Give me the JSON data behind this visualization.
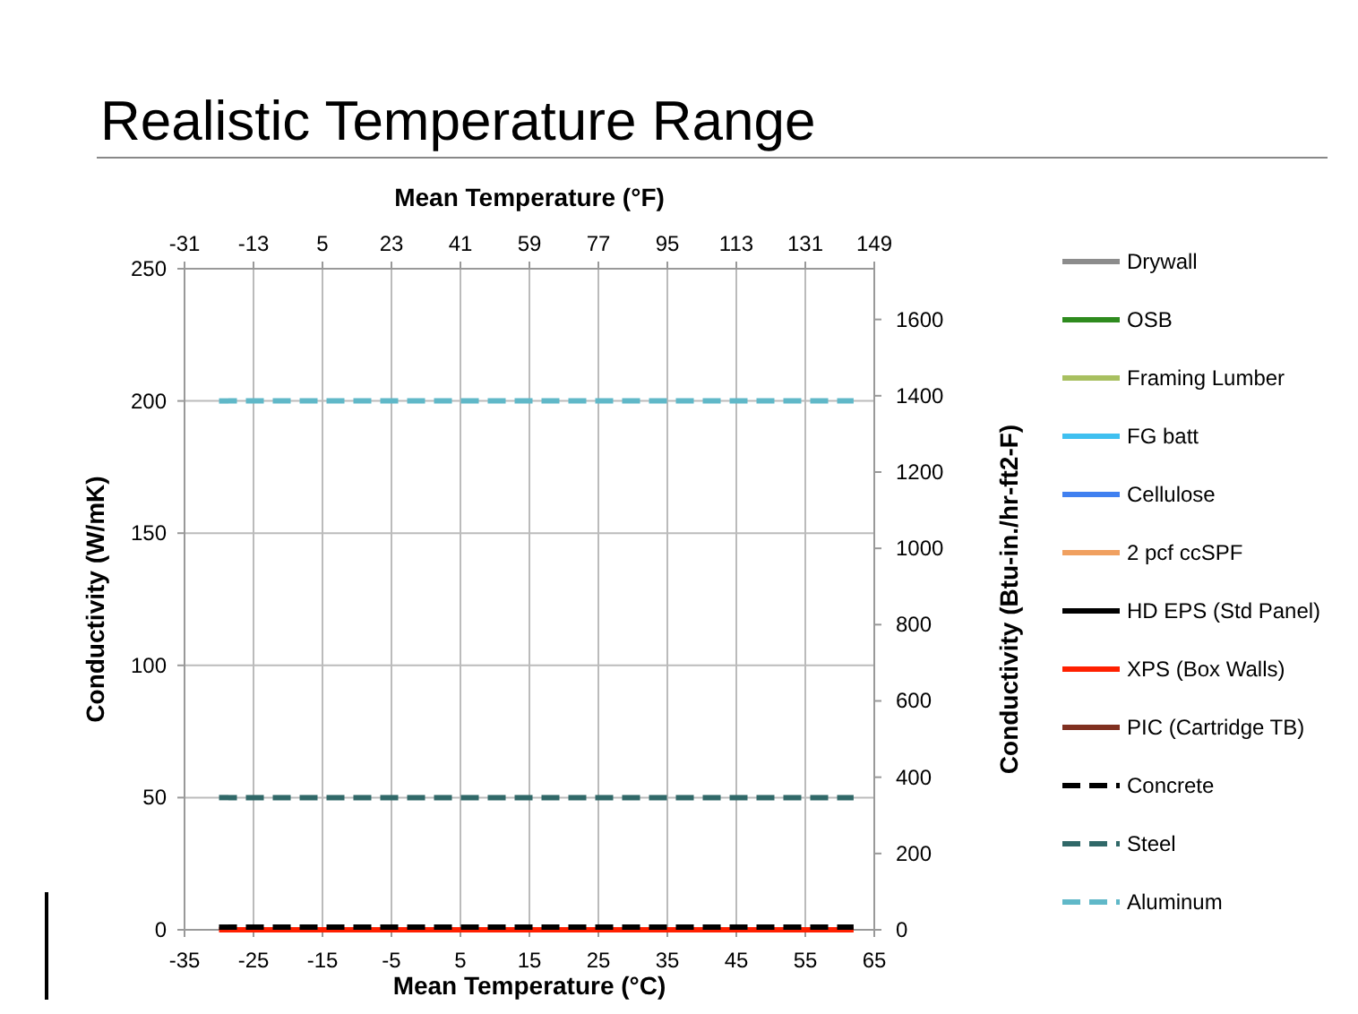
{
  "chart_data": {
    "type": "line",
    "title": "Realistic Temperature Range",
    "xlabel": "Mean Temperature (°C)",
    "x2label": "Mean Temperature (°F)",
    "ylabel": "Conductivity (W/mK)",
    "y2label": "Conductivity (Btu-in./hr-ft2-F)",
    "xlim": [
      -35,
      65
    ],
    "xticks": [
      -35,
      -25,
      -15,
      -5,
      5,
      15,
      25,
      35,
      45,
      55,
      65
    ],
    "x2lim": [
      -31,
      149
    ],
    "x2ticks": [
      -31,
      -13,
      5,
      23,
      41,
      59,
      77,
      95,
      113,
      131,
      149
    ],
    "ylim": [
      0,
      250
    ],
    "yticks": [
      0,
      50,
      100,
      150,
      200,
      250
    ],
    "y2lim": [
      0,
      1733
    ],
    "y2ticks": [
      0,
      200,
      400,
      600,
      800,
      1000,
      1200,
      1400,
      1600
    ],
    "grid": true,
    "legend": "right",
    "marker": "none",
    "line_style": "solid",
    "x": [
      -30,
      62
    ],
    "series": [
      {
        "name": "Drywall",
        "color": "#8c8c8c",
        "values": [
          null,
          null
        ]
      },
      {
        "name": "OSB",
        "color": "#2e8b1e",
        "values": [
          null,
          null
        ]
      },
      {
        "name": "Framing Lumber",
        "color": "#a8c060",
        "values": [
          null,
          null
        ]
      },
      {
        "name": "FG batt",
        "color": "#40c0f0",
        "values": [
          null,
          null
        ]
      },
      {
        "name": "Cellulose",
        "color": "#4080f0",
        "values": [
          null,
          null
        ]
      },
      {
        "name": "2 pcf ccSPF",
        "color": "#f0a060",
        "values": [
          null,
          null
        ]
      },
      {
        "name": "HD EPS (Std Panel)",
        "color": "#000000",
        "values": [
          null,
          null
        ]
      },
      {
        "name": "XPS (Box Walls)",
        "color": "#ff2000",
        "values": [
          0,
          0
        ]
      },
      {
        "name": "PIC (Cartridge TB)",
        "color": "#803020",
        "values": [
          null,
          null
        ]
      },
      {
        "name": "Concrete",
        "color": "#000000",
        "line_style": "dashed",
        "values": [
          1,
          1
        ]
      },
      {
        "name": "Steel",
        "color": "#306868",
        "line_style": "dashed",
        "values": [
          50,
          50
        ]
      },
      {
        "name": "Aluminum",
        "color": "#60b8c8",
        "line_style": "dashed",
        "values": [
          200,
          200
        ]
      }
    ]
  }
}
